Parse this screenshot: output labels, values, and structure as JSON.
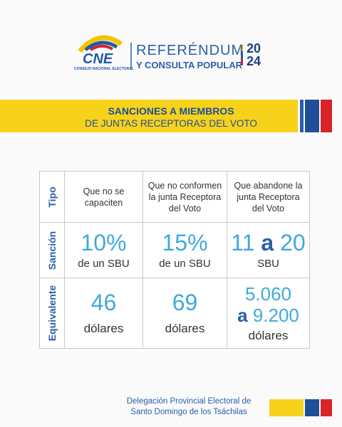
{
  "header": {
    "logo": {
      "acronym": "CNE",
      "name": "CONSEJO NACIONAL ELECTORAL"
    },
    "title_line1": "REFERÉNDUM",
    "title_line2": "Y CONSULTA POPULAR",
    "year_top": "20",
    "year_bottom": "24"
  },
  "banner": {
    "line1": "SANCIONES A MIEMBROS",
    "line2": "DE JUNTAS RECEPTORAS DEL VOTO"
  },
  "table": {
    "row_headers": [
      "Tipo",
      "Sanción",
      "Equivalente"
    ],
    "tipo": [
      "Que no se capaciten",
      "Que no conformen la junta Receptora del Voto",
      "Que abandone la junta Receptora del Voto"
    ],
    "sancion": [
      {
        "value": "10%",
        "unit": "de un SBU"
      },
      {
        "value": "15%",
        "unit": "de un SBU"
      },
      {
        "from": "11",
        "joiner": "a",
        "to": "20",
        "unit": "SBU"
      }
    ],
    "equivalente": [
      {
        "value": "46",
        "unit": "dólares"
      },
      {
        "value": "69",
        "unit": "dólares"
      },
      {
        "from": "5.060",
        "joiner": "a",
        "to": "9.200",
        "unit": "dólares"
      }
    ]
  },
  "footer": {
    "line1": "Delegación Provincial Electoral de",
    "line2": "Santo Domingo de los Tsáchilas"
  }
}
